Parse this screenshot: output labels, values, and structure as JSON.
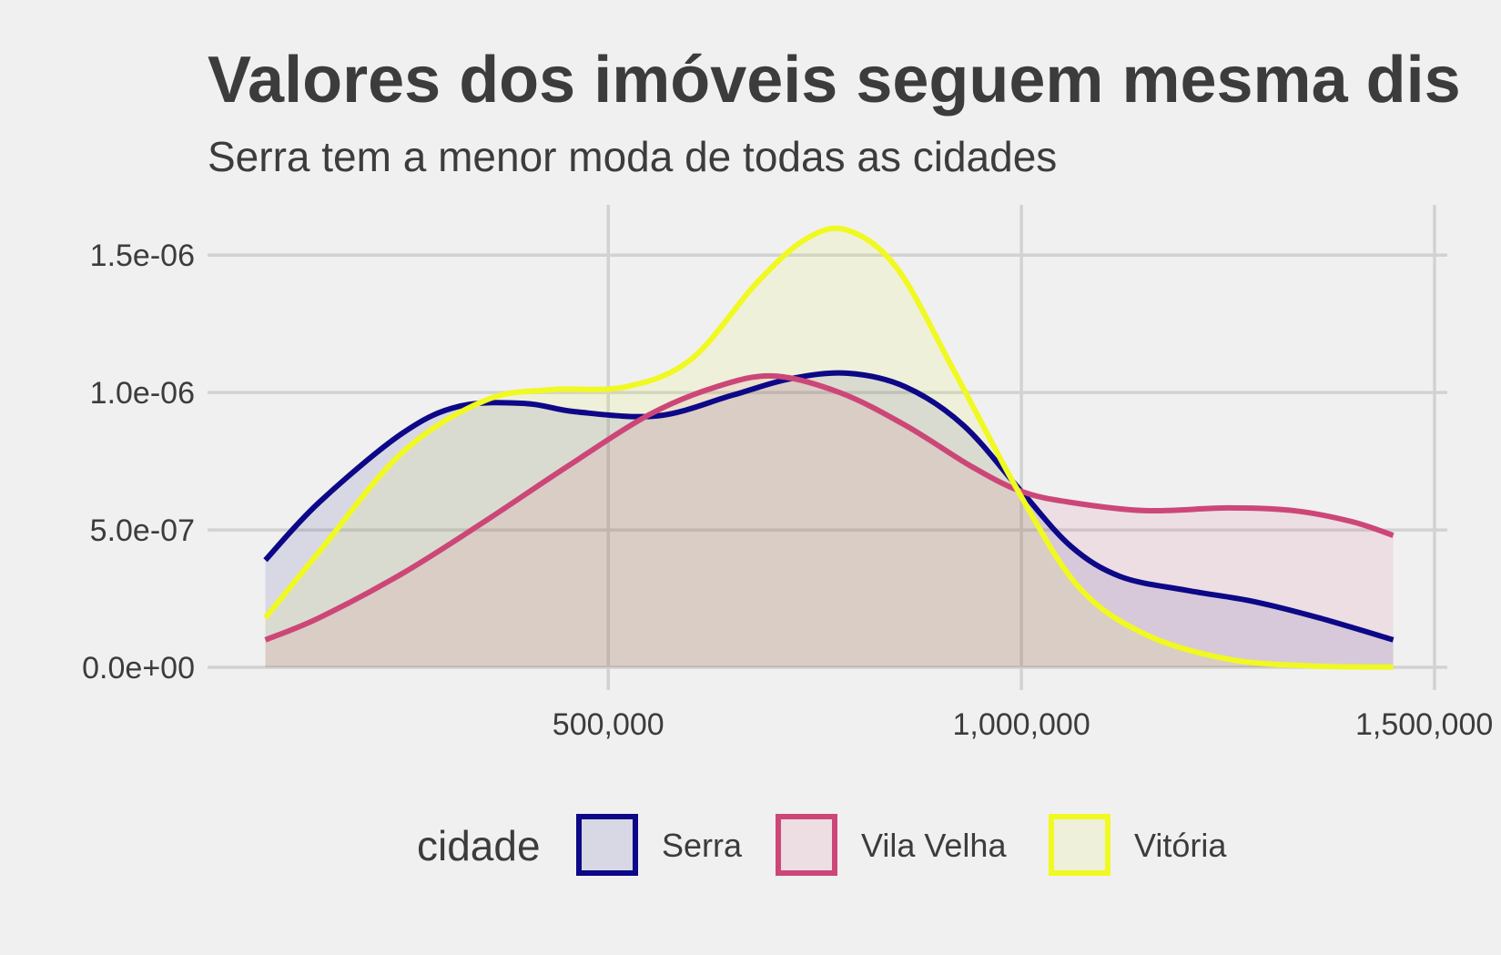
{
  "chart_data": {
    "type": "area",
    "title": "Valores dos imóveis seguem mesma dis",
    "subtitle": "Serra tem a menor moda de todas as cidades",
    "xlabel": "",
    "ylabel": "",
    "xlim": [
      15000,
      1500000
    ],
    "ylim": [
      0,
      1.6e-06
    ],
    "x_ticks": [
      500000,
      1000000,
      1500000
    ],
    "x_tick_labels": [
      "500,000",
      "1,000,000",
      "1,500,000"
    ],
    "y_ticks": [
      0,
      5e-07,
      1e-06,
      1.5e-06
    ],
    "y_tick_labels": [
      "0.0e+00",
      "5.0e-07",
      "1.0e-06",
      "1.5e-06"
    ],
    "grid": true,
    "legend": {
      "title": "cidade",
      "position": "bottom"
    },
    "series": [
      {
        "name": "Serra",
        "color": "#0d0887",
        "x": [
          85000,
          150000,
          250000,
          320000,
          400000,
          460000,
          560000,
          650000,
          720000,
          790000,
          860000,
          930000,
          1000000,
          1060000,
          1120000,
          1200000,
          1280000,
          1360000,
          1450000
        ],
        "y": [
          3.9e-07,
          6e-07,
          8.5e-07,
          9.5e-07,
          9.6e-07,
          9.3e-07,
          9.15e-07,
          9.9e-07,
          1.05e-06,
          1.07e-06,
          1.02e-06,
          8.8e-07,
          6.4e-07,
          4.4e-07,
          3.3e-07,
          2.8e-07,
          2.4e-07,
          1.8e-07,
          1e-07
        ]
      },
      {
        "name": "Vila Velha",
        "color": "#cc4778",
        "x": [
          85000,
          150000,
          250000,
          350000,
          450000,
          550000,
          630000,
          700000,
          780000,
          860000,
          940000,
          1000000,
          1060000,
          1150000,
          1250000,
          1330000,
          1400000,
          1450000
        ],
        "y": [
          1e-07,
          1.8e-07,
          3.4e-07,
          5.3e-07,
          7.3e-07,
          9.2e-07,
          1.02e-06,
          1.06e-06,
          1e-06,
          8.8e-07,
          7.3e-07,
          6.4e-07,
          6e-07,
          5.7e-07,
          5.8e-07,
          5.7e-07,
          5.3e-07,
          4.8e-07
        ]
      },
      {
        "name": "Vitória",
        "color": "#f0f921",
        "x": [
          85000,
          150000,
          250000,
          350000,
          430000,
          520000,
          600000,
          680000,
          740000,
          790000,
          850000,
          920000,
          1000000,
          1070000,
          1150000,
          1250000,
          1350000,
          1450000
        ],
        "y": [
          1.8e-07,
          4.2e-07,
          7.8e-07,
          9.7e-07,
          1.01e-06,
          1.02e-06,
          1.12e-06,
          1.4e-06,
          1.56e-06,
          1.59e-06,
          1.45e-06,
          1.07e-06,
          6.2e-07,
          2.9e-07,
          1.2e-07,
          3e-08,
          5e-09,
          1e-09
        ]
      }
    ]
  }
}
